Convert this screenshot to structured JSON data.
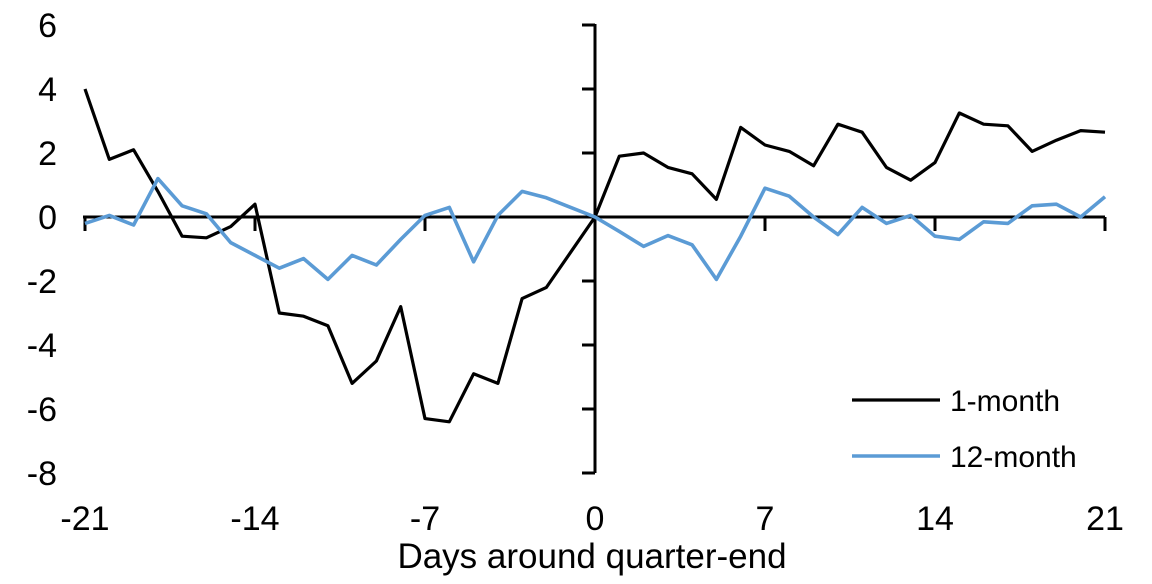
{
  "chart_data": {
    "type": "line",
    "title": "",
    "xlabel": "Days around quarter-end",
    "ylabel": "",
    "x": [
      -21,
      -20,
      -19,
      -18,
      -17,
      -16,
      -15,
      -14,
      -13,
      -12,
      -11,
      -10,
      -9,
      -8,
      -7,
      -6,
      -5,
      -4,
      -3,
      -2,
      -1,
      0,
      1,
      2,
      3,
      4,
      5,
      6,
      7,
      8,
      9,
      10,
      11,
      12,
      13,
      14,
      15,
      16,
      17,
      18,
      19,
      20,
      21
    ],
    "series": [
      {
        "name": "1-month",
        "color": "#000000",
        "values": [
          4.0,
          1.8,
          2.1,
          0.8,
          -0.6,
          -0.65,
          -0.3,
          0.4,
          -3.0,
          -3.1,
          -3.4,
          -5.2,
          -4.5,
          -2.8,
          -6.3,
          -6.4,
          -4.9,
          -5.2,
          -2.55,
          -2.2,
          -1.1,
          0,
          1.9,
          2.0,
          1.55,
          1.35,
          0.55,
          2.8,
          2.25,
          2.05,
          1.6,
          2.9,
          2.65,
          1.55,
          1.15,
          1.7,
          3.25,
          2.9,
          2.85,
          2.05,
          2.4,
          2.7,
          2.65
        ]
      },
      {
        "name": "12-month",
        "color": "#5B9BD5",
        "values": [
          -0.2,
          0.05,
          -0.25,
          1.2,
          0.35,
          0.1,
          -0.8,
          -1.2,
          -1.6,
          -1.3,
          -1.95,
          -1.2,
          -1.5,
          -0.7,
          0.05,
          0.3,
          -1.4,
          0.05,
          0.8,
          0.6,
          0.3,
          0,
          -0.45,
          -0.92,
          -0.58,
          -0.87,
          -1.95,
          -0.6,
          0.9,
          0.65,
          0.0,
          -0.55,
          0.3,
          -0.2,
          0.05,
          -0.6,
          -0.7,
          -0.15,
          -0.2,
          0.35,
          0.4,
          0.0,
          0.63
        ]
      }
    ],
    "xlim": [
      -21,
      21
    ],
    "ylim": [
      -8,
      6
    ],
    "x_ticks": [
      -21,
      -14,
      -7,
      0,
      7,
      14,
      21
    ],
    "y_ticks": [
      6,
      4,
      2,
      0,
      -2,
      -4,
      -6,
      -8
    ],
    "grid": false,
    "axes_cross_at_zero": true,
    "legend_position": "lower-right",
    "axis_color": "#000000"
  }
}
